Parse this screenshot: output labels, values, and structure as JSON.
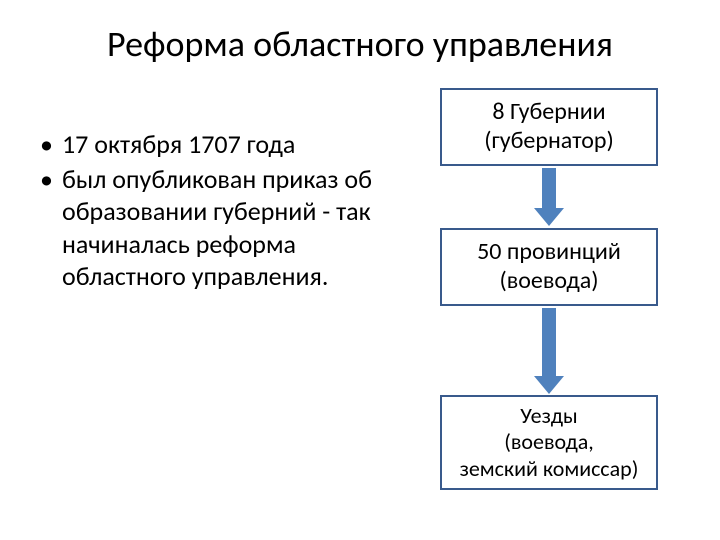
{
  "title": "Реформа областного управления",
  "bullets": [
    "17 октября 1707 года",
    "был опубликован приказ об образовании губерний - так начиналась реформа областного управления."
  ],
  "hierarchy": {
    "nodes": [
      {
        "line1": "8 Губернии",
        "line2": "(губернатор)"
      },
      {
        "line1": "50 провинций",
        "line2": "(воевода)"
      },
      {
        "line1": "Уезды",
        "line2": "(воевода,",
        "line3": "земский комиссар)"
      }
    ],
    "box_border_color": "#395a8c",
    "box_background": "#ffffff",
    "arrow_color": "#4f81bd",
    "node_fontsize": 24,
    "node3_fontsize": 22
  },
  "title_fontsize": 36,
  "bullet_fontsize": 26,
  "background_color": "#ffffff",
  "text_color": "#000000"
}
